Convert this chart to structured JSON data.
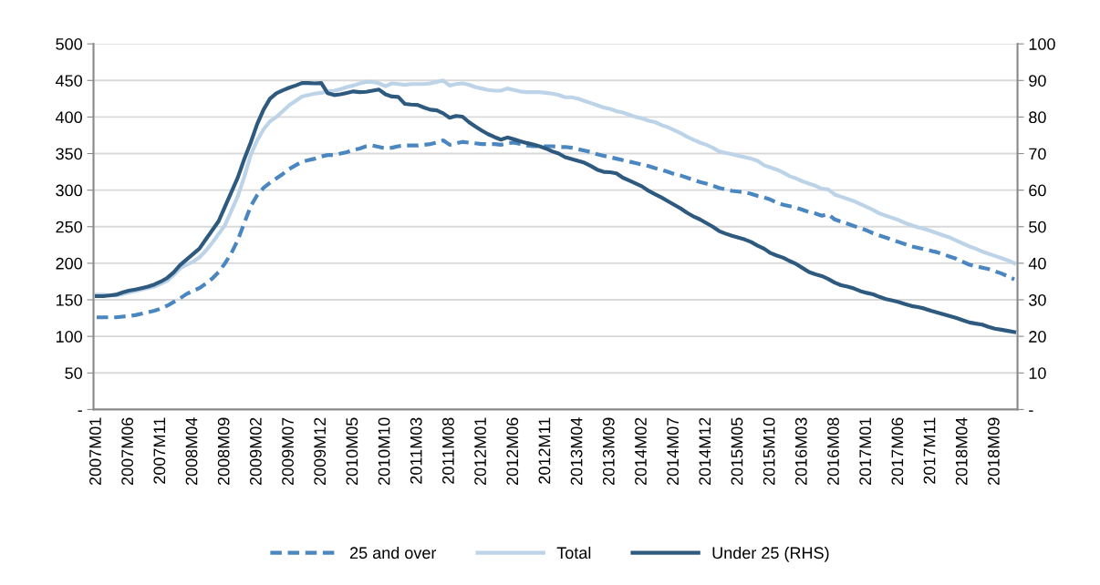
{
  "chart_data": {
    "type": "line",
    "categories": [
      "2007M01",
      null,
      null,
      null,
      null,
      "2007M06",
      null,
      null,
      null,
      null,
      "2007M11",
      null,
      null,
      null,
      null,
      "2008M04",
      null,
      null,
      null,
      null,
      "2008M09",
      null,
      null,
      null,
      null,
      "2009M02",
      null,
      null,
      null,
      null,
      "2009M07",
      null,
      null,
      null,
      null,
      "2009M12",
      null,
      null,
      null,
      null,
      "2010M05",
      null,
      null,
      null,
      null,
      "2010M10",
      null,
      null,
      null,
      null,
      "2011M03",
      null,
      null,
      null,
      null,
      "2011M08",
      null,
      null,
      null,
      null,
      "2012M01",
      null,
      null,
      null,
      null,
      "2012M06",
      null,
      null,
      null,
      null,
      "2012M11",
      null,
      null,
      null,
      null,
      "2013M04",
      null,
      null,
      null,
      null,
      "2013M09",
      null,
      null,
      null,
      null,
      "2014M02",
      null,
      null,
      null,
      null,
      "2014M07",
      null,
      null,
      null,
      null,
      "2014M12",
      null,
      null,
      null,
      null,
      "2015M05",
      null,
      null,
      null,
      null,
      "2015M10",
      null,
      null,
      null,
      null,
      "2016M03",
      null,
      null,
      null,
      null,
      "2016M08",
      null,
      null,
      null,
      null,
      "2017M01",
      null,
      null,
      null,
      null,
      "2017M06",
      null,
      null,
      null,
      null,
      "2017M11",
      null,
      null,
      null,
      null,
      "2018M04",
      null,
      null,
      null,
      null,
      "2018M09",
      null,
      null,
      null
    ],
    "series": [
      {
        "name": "25 and over",
        "color": "#4a86c0",
        "line_style": "dashed",
        "values": [
          126,
          126,
          126,
          126,
          127,
          128,
          129,
          131,
          133,
          135,
          138,
          142,
          147,
          152,
          158,
          162,
          166,
          172,
          179,
          188,
          200,
          214,
          232,
          255,
          278,
          293,
          303,
          310,
          316,
          322,
          329,
          334,
          339,
          341,
          343,
          346,
          348,
          348,
          350,
          352,
          355,
          357,
          360,
          361,
          359,
          357,
          358,
          360,
          361,
          361,
          361,
          362,
          363,
          365,
          368,
          362,
          364,
          366,
          365,
          364,
          363,
          363,
          363,
          362,
          364,
          365,
          363,
          361,
          360,
          360,
          360,
          360,
          359,
          359,
          358,
          356,
          354,
          352,
          349,
          347,
          345,
          343,
          341,
          339,
          337,
          335,
          333,
          330,
          328,
          325,
          322,
          320,
          317,
          314,
          311,
          309,
          306,
          303,
          301,
          299,
          298,
          297,
          295,
          292,
          290,
          287,
          283,
          280,
          278,
          276,
          273,
          270,
          268,
          265,
          267,
          260,
          257,
          254,
          251,
          248,
          245,
          241,
          238,
          235,
          232,
          229,
          226,
          223,
          221,
          219,
          217,
          215,
          212,
          209,
          206,
          202,
          198,
          196,
          194,
          192,
          189,
          186,
          182,
          178
        ]
      },
      {
        "name": "Total",
        "color": "#bdd3e8",
        "line_style": "solid",
        "values": [
          157,
          157,
          156,
          156,
          158,
          160,
          162,
          164,
          166,
          168,
          172,
          176,
          184,
          193,
          198,
          202,
          208,
          217,
          228,
          240,
          252,
          272,
          292,
          318,
          348,
          368,
          383,
          394,
          400,
          408,
          416,
          422,
          428,
          430,
          432,
          433,
          435,
          436,
          438,
          441,
          443,
          446,
          448,
          448,
          446,
          442,
          446,
          445,
          444,
          445,
          445,
          445,
          446,
          448,
          450,
          443,
          445,
          446,
          444,
          441,
          439,
          437,
          436,
          436,
          439,
          437,
          435,
          434,
          434,
          434,
          433,
          432,
          430,
          427,
          427,
          425,
          422,
          419,
          416,
          413,
          411,
          408,
          406,
          403,
          400,
          398,
          395,
          393,
          389,
          386,
          382,
          378,
          373,
          369,
          365,
          362,
          358,
          353,
          351,
          349,
          347,
          345,
          343,
          340,
          334,
          331,
          328,
          324,
          319,
          316,
          312,
          309,
          306,
          302,
          301,
          294,
          291,
          288,
          285,
          281,
          277,
          273,
          268,
          265,
          262,
          259,
          255,
          252,
          249,
          247,
          244,
          241,
          238,
          235,
          231,
          227,
          223,
          220,
          216,
          213,
          210,
          207,
          204,
          200
        ]
      },
      {
        "name": "Under 25 (RHS)",
        "color": "#2e5a80",
        "line_style": "solid",
        "axis": "y2",
        "values": [
          31,
          31,
          31.2,
          31.4,
          32,
          32.5,
          32.8,
          33.2,
          33.6,
          34.2,
          35,
          36,
          37.5,
          39.5,
          41,
          42.5,
          44,
          46.5,
          49,
          51.5,
          55.5,
          59.5,
          63.5,
          68.5,
          73,
          78,
          82,
          85,
          86.5,
          87.3,
          88,
          88.6,
          89.3,
          89.3,
          89.2,
          89.3,
          86.5,
          86,
          86.2,
          86.6,
          87,
          86.8,
          86.9,
          87.2,
          87.5,
          86.2,
          85.6,
          85.5,
          83.6,
          83.4,
          83.3,
          82.6,
          82,
          81.8,
          81,
          79.8,
          80.3,
          80.1,
          78.6,
          77.4,
          76.3,
          75.3,
          74.5,
          73.8,
          74.4,
          73.9,
          73.4,
          72.9,
          72.5,
          72,
          71.4,
          70.6,
          70,
          69,
          68.5,
          68,
          67.5,
          66.6,
          65.6,
          65,
          64.9,
          64.6,
          63.4,
          62.6,
          61.8,
          61,
          59.8,
          58.9,
          58,
          57,
          56,
          55,
          53.8,
          52.8,
          52,
          51,
          50,
          48.8,
          48.1,
          47.5,
          47,
          46.5,
          45.8,
          44.8,
          44,
          42.8,
          42.1,
          41.5,
          40.6,
          39.8,
          38.7,
          37.6,
          37,
          36.5,
          35.7,
          34.7,
          34,
          33.6,
          33.1,
          32.4,
          31.9,
          31.5,
          30.8,
          30.2,
          29.8,
          29.4,
          28.8,
          28.3,
          28,
          27.6,
          27,
          26.5,
          26,
          25.5,
          25,
          24.4,
          23.8,
          23.5,
          23.2,
          22.6,
          22.1,
          21.8,
          21.5,
          21.2
        ]
      }
    ],
    "ylim": [
      0,
      500
    ],
    "yticks": [
      {
        "value": 0,
        "label": "-"
      },
      50,
      100,
      150,
      200,
      250,
      300,
      350,
      400,
      450,
      500
    ],
    "y2lim": [
      0,
      100
    ],
    "y2ticks": [
      {
        "value": 0,
        "label": "-"
      },
      10,
      20,
      30,
      40,
      50,
      60,
      70,
      80,
      90,
      100
    ],
    "grid": "y",
    "legend": "bottom"
  }
}
